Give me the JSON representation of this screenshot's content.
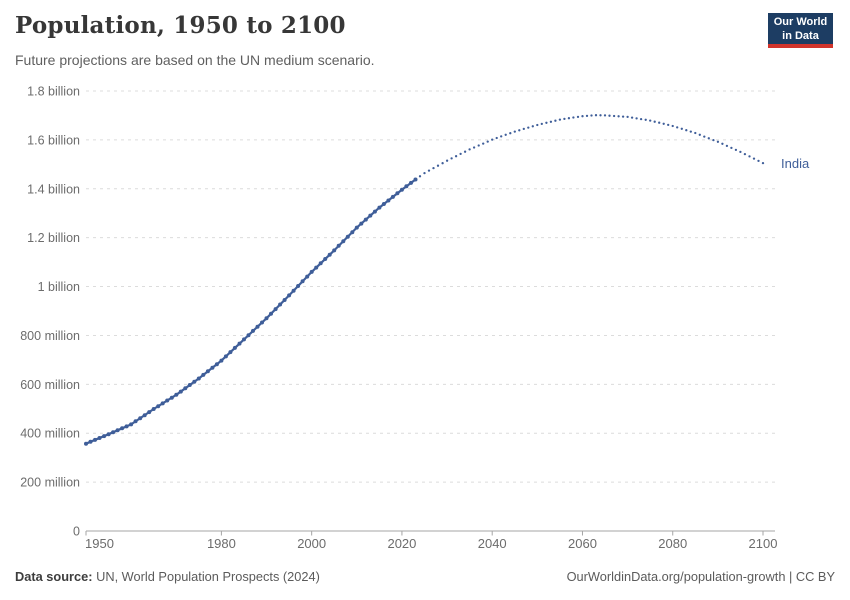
{
  "header": {
    "title": "Population, 1950 to 2100",
    "subtitle": "Future projections are based on the UN medium scenario.",
    "logo": {
      "line1": "Our World",
      "line2": "in Data"
    }
  },
  "chart_data": {
    "type": "line",
    "title": "Population, 1950 to 2100",
    "subtitle": "Future projections are based on the UN medium scenario.",
    "entity": "India",
    "end_label": "India",
    "unit_millions": "people (millions)",
    "grid": true,
    "xlim": [
      1950,
      2100
    ],
    "ylim_millions": [
      0,
      1800
    ],
    "x_ticks": [
      1950,
      1980,
      2000,
      2020,
      2040,
      2060,
      2080,
      2100
    ],
    "y_ticks": [
      {
        "value": 0,
        "label": "0"
      },
      {
        "value": 200,
        "label": "200 million"
      },
      {
        "value": 400,
        "label": "400 million"
      },
      {
        "value": 600,
        "label": "600 million"
      },
      {
        "value": 800,
        "label": "800 million"
      },
      {
        "value": 1000,
        "label": "1 billion"
      },
      {
        "value": 1200,
        "label": "1.2 billion"
      },
      {
        "value": 1400,
        "label": "1.4 billion"
      },
      {
        "value": 1600,
        "label": "1.6 billion"
      },
      {
        "value": 1800,
        "label": "1.8 billion"
      }
    ],
    "segments": [
      {
        "kind": "historical",
        "style": "solid",
        "points": [
          [
            1950,
            357
          ],
          [
            1955,
            396
          ],
          [
            1960,
            436
          ],
          [
            1965,
            499
          ],
          [
            1970,
            557
          ],
          [
            1975,
            624
          ],
          [
            1980,
            697
          ],
          [
            1985,
            784
          ],
          [
            1990,
            870
          ],
          [
            1995,
            964
          ],
          [
            2000,
            1060
          ],
          [
            2005,
            1148
          ],
          [
            2010,
            1241
          ],
          [
            2015,
            1323
          ],
          [
            2020,
            1396
          ],
          [
            2023,
            1438
          ]
        ]
      },
      {
        "kind": "projection",
        "style": "dotted",
        "points": [
          [
            2023,
            1438
          ],
          [
            2025,
            1464
          ],
          [
            2030,
            1515
          ],
          [
            2035,
            1561
          ],
          [
            2040,
            1601
          ],
          [
            2045,
            1634
          ],
          [
            2050,
            1661
          ],
          [
            2055,
            1683
          ],
          [
            2060,
            1697
          ],
          [
            2063,
            1701
          ],
          [
            2065,
            1700
          ],
          [
            2070,
            1694
          ],
          [
            2075,
            1679
          ],
          [
            2080,
            1657
          ],
          [
            2085,
            1628
          ],
          [
            2090,
            1592
          ],
          [
            2095,
            1551
          ],
          [
            2100,
            1505
          ]
        ]
      }
    ]
  },
  "colors": {
    "line": "#3f5e99",
    "grid": "#dcdcdc",
    "axis": "#a6a6a6",
    "tick_label": "#6c6c6c",
    "logo_bg": "#1d3d63",
    "logo_red": "#d1342c"
  },
  "footer": {
    "source_label": "Data source:",
    "source_text": " UN, World Population Prospects (2024)",
    "link_text": "OurWorldinData.org/population-growth | CC BY"
  }
}
